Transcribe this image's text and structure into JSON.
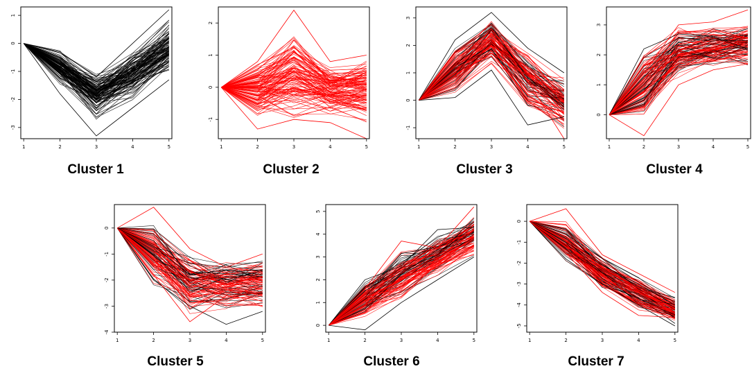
{
  "colors": {
    "black_profile": "#000000",
    "red_profile": "#ff0000",
    "axis": "#000000",
    "background": "#ffffff"
  },
  "chart_data": [
    {
      "type": "line",
      "title": "Cluster 1",
      "x": [
        1,
        2,
        3,
        4,
        5
      ],
      "xticks": [
        "1",
        "2",
        "3",
        "4",
        "5"
      ],
      "ylim": [
        -3.4,
        1.3
      ],
      "yticks": [
        "-3",
        "-2",
        "-1",
        "0",
        "1"
      ],
      "series": [
        {
          "color": "black",
          "values": [
            0,
            -0.7,
            -1.5,
            -1.0,
            -0.2
          ]
        },
        {
          "color": "black",
          "values": [
            0,
            -0.5,
            -1.3,
            -0.9,
            0.1
          ]
        },
        {
          "color": "black",
          "values": [
            0,
            -1.0,
            -2.0,
            -1.4,
            -0.6
          ]
        },
        {
          "color": "black",
          "values": [
            0,
            -1.8,
            -3.3,
            -2.3,
            -1.3
          ]
        },
        {
          "color": "black",
          "values": [
            0,
            -0.3,
            -1.2,
            0.0,
            1.2
          ]
        }
      ]
    },
    {
      "type": "line",
      "title": "Cluster 2",
      "x": [
        1,
        2,
        3,
        4,
        5
      ],
      "xticks": [
        "1",
        "2",
        "3",
        "4",
        "5"
      ],
      "ylim": [
        -1.6,
        2.5
      ],
      "yticks": [
        "-1",
        "0",
        "1",
        "2"
      ],
      "series": [
        {
          "color": "red",
          "values": [
            0,
            0.3,
            0.5,
            0.2,
            0.3
          ]
        },
        {
          "color": "red",
          "values": [
            0,
            -0.4,
            0.0,
            -0.3,
            -0.2
          ]
        },
        {
          "color": "red",
          "values": [
            0,
            0.8,
            2.4,
            0.8,
            1.0
          ]
        },
        {
          "color": "red",
          "values": [
            0,
            -1.3,
            -1.0,
            -1.1,
            -1.6
          ]
        },
        {
          "color": "red",
          "values": [
            0,
            0.0,
            -0.1,
            0.0,
            0.1
          ]
        }
      ]
    },
    {
      "type": "line",
      "title": "Cluster 3",
      "x": [
        1,
        2,
        3,
        4,
        5
      ],
      "xticks": [
        "1",
        "2",
        "3",
        "4",
        "5"
      ],
      "ylim": [
        -1.4,
        3.4
      ],
      "yticks": [
        "-1",
        "0",
        "1",
        "2",
        "3"
      ],
      "series": [
        {
          "color": "red",
          "values": [
            0,
            1.1,
            2.0,
            1.2,
            0.4
          ]
        },
        {
          "color": "red",
          "values": [
            0,
            0.9,
            1.7,
            0.9,
            0.0
          ]
        },
        {
          "color": "black",
          "values": [
            0,
            2.2,
            3.2,
            1.9,
            1.0
          ]
        },
        {
          "color": "black",
          "values": [
            0,
            0.1,
            1.1,
            -0.9,
            -0.6
          ]
        },
        {
          "color": "red",
          "values": [
            0,
            1.3,
            2.6,
            0.7,
            -1.4
          ]
        }
      ]
    },
    {
      "type": "line",
      "title": "Cluster 4",
      "x": [
        1,
        2,
        3,
        4,
        5
      ],
      "xticks": [
        "1",
        "2",
        "3",
        "4",
        "5"
      ],
      "ylim": [
        -0.8,
        3.6
      ],
      "yticks": [
        "0",
        "1",
        "2",
        "3"
      ],
      "series": [
        {
          "color": "red",
          "values": [
            0,
            1.2,
            2.0,
            2.2,
            2.4
          ]
        },
        {
          "color": "red",
          "values": [
            0,
            0.8,
            1.7,
            1.8,
            2.0
          ]
        },
        {
          "color": "black",
          "values": [
            0,
            2.2,
            2.7,
            2.6,
            2.2
          ]
        },
        {
          "color": "red",
          "values": [
            0,
            -0.7,
            1.0,
            1.5,
            1.7
          ]
        },
        {
          "color": "red",
          "values": [
            0,
            1.4,
            3.0,
            3.1,
            3.5
          ]
        }
      ]
    },
    {
      "type": "line",
      "title": "Cluster 5",
      "x": [
        1,
        2,
        3,
        4,
        5
      ],
      "xticks": [
        "1",
        "2",
        "3",
        "4",
        "5"
      ],
      "ylim": [
        -4.0,
        0.9
      ],
      "yticks": [
        "-4",
        "-3",
        "-2",
        "-1",
        "0"
      ],
      "series": [
        {
          "color": "red",
          "values": [
            0,
            -1.4,
            -2.0,
            -1.9,
            -2.0
          ]
        },
        {
          "color": "black",
          "values": [
            0,
            -0.7,
            -1.8,
            -1.6,
            -1.8
          ]
        },
        {
          "color": "red",
          "values": [
            0,
            0.8,
            -0.8,
            -1.5,
            -1.0
          ]
        },
        {
          "color": "black",
          "values": [
            0,
            -2.0,
            -3.0,
            -3.7,
            -3.2
          ]
        },
        {
          "color": "red",
          "values": [
            0,
            -1.8,
            -3.6,
            -2.6,
            -2.8
          ]
        }
      ]
    },
    {
      "type": "line",
      "title": "Cluster 6",
      "x": [
        1,
        2,
        3,
        4,
        5
      ],
      "xticks": [
        "1",
        "2",
        "3",
        "4",
        "5"
      ],
      "ylim": [
        -0.3,
        5.3
      ],
      "yticks": [
        "0",
        "1",
        "2",
        "3",
        "4",
        "5"
      ],
      "series": [
        {
          "color": "red",
          "values": [
            0,
            1.2,
            2.0,
            2.9,
            3.8
          ]
        },
        {
          "color": "red",
          "values": [
            0,
            0.9,
            1.7,
            2.6,
            3.4
          ]
        },
        {
          "color": "black",
          "values": [
            0,
            2.0,
            2.6,
            4.2,
            4.3
          ]
        },
        {
          "color": "black",
          "values": [
            0,
            -0.2,
            1.0,
            2.0,
            3.0
          ]
        },
        {
          "color": "red",
          "values": [
            0,
            1.6,
            3.7,
            3.4,
            5.2
          ]
        }
      ]
    },
    {
      "type": "line",
      "title": "Cluster 7",
      "x": [
        1,
        2,
        3,
        4,
        5
      ],
      "xticks": [
        "1",
        "2",
        "3",
        "4",
        "5"
      ],
      "ylim": [
        -5.3,
        0.8
      ],
      "yticks": [
        "-5",
        "-4",
        "-3",
        "-2",
        "-1",
        "0"
      ],
      "series": [
        {
          "color": "black",
          "values": [
            0,
            -1.0,
            -2.1,
            -3.0,
            -4.0
          ]
        },
        {
          "color": "red",
          "values": [
            0,
            -1.2,
            -2.3,
            -3.2,
            -4.2
          ]
        },
        {
          "color": "red",
          "values": [
            0,
            0.6,
            -1.6,
            -2.5,
            -3.4
          ]
        },
        {
          "color": "black",
          "values": [
            0,
            -1.8,
            -3.0,
            -4.0,
            -5.0
          ]
        },
        {
          "color": "red",
          "values": [
            0,
            -1.5,
            -3.4,
            -4.5,
            -4.6
          ]
        }
      ]
    }
  ]
}
